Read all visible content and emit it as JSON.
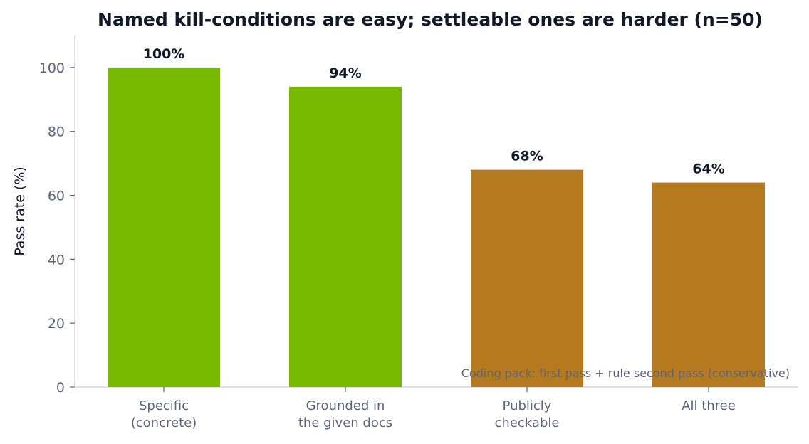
{
  "chart_data": {
    "type": "bar",
    "title": "Named kill-conditions are easy; settleable ones are harder (n=50)",
    "xlabel": "",
    "ylabel": "Pass rate (%)",
    "ylim": [
      0,
      110
    ],
    "yticks": [
      0,
      20,
      40,
      60,
      80,
      100
    ],
    "categories": [
      [
        "Specific",
        "(concrete)"
      ],
      [
        "Grounded in",
        "the given docs"
      ],
      [
        "Publicly",
        "checkable"
      ],
      [
        "All three"
      ]
    ],
    "values": [
      100,
      94,
      68,
      64
    ],
    "data_labels": [
      "100%",
      "94%",
      "68%",
      "64%"
    ],
    "bar_colors": [
      "#77b800",
      "#77b800",
      "#b5791f",
      "#b5791f"
    ],
    "annotation": "Coding pack: first pass + rule second pass (conservative)",
    "grid": false,
    "legend": "none"
  }
}
